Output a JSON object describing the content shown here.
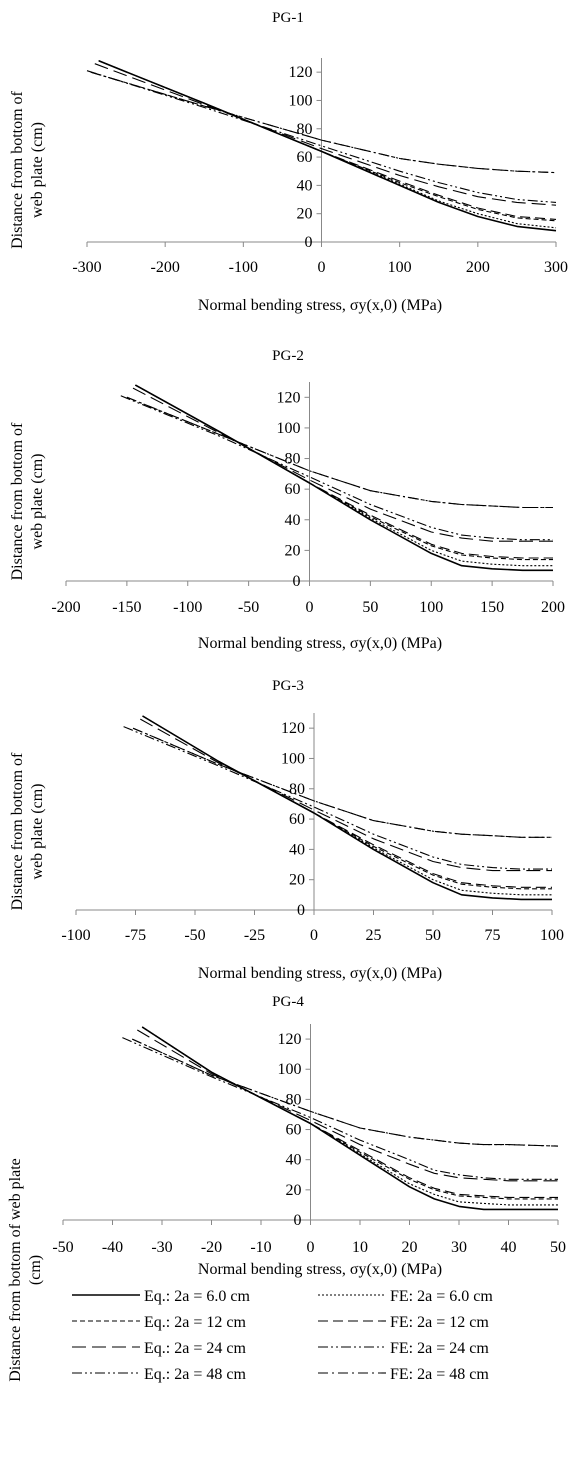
{
  "y_label": "Distance from bottom of web plate (cm)",
  "y_label_lines_a": [
    "Distance from bottom of",
    "web plate (cm)"
  ],
  "y_label_lines_b": [
    "Distance from bottom of web plate",
    "(cm)"
  ],
  "legend": [
    {
      "label": "Eq.: 2a = 6.0 cm",
      "dash": "solid"
    },
    {
      "label": "FE: 2a = 6.0 cm",
      "dash": "dotted"
    },
    {
      "label": "Eq.: 2a = 12 cm",
      "dash": "short-dash"
    },
    {
      "label": "FE: 2a = 12 cm",
      "dash": "dash"
    },
    {
      "label": "Eq.: 2a = 24 cm",
      "dash": "long-dash"
    },
    {
      "label": "FE: 2a = 24 cm",
      "dash": "dash-dot-dot"
    },
    {
      "label": "Eq.: 2a = 48 cm",
      "dash": "dash-dot-dot"
    },
    {
      "label": "FE: 2a = 48 cm",
      "dash": "dash-dot"
    }
  ],
  "chart_data": [
    {
      "type": "line",
      "title": "PG-1",
      "xlabel": "Normal bending stress,  σy(x,0) (MPa)",
      "ylabel": "Distance from bottom of web plate (cm)",
      "xlim": [
        -300,
        300
      ],
      "ylim": [
        0,
        130
      ],
      "xticks": [
        -300,
        -200,
        -100,
        0,
        100,
        200,
        300
      ],
      "yticks": [
        0,
        20,
        40,
        60,
        80,
        100,
        120
      ],
      "grid": false,
      "series": [
        {
          "name": "Eq.: 2a = 6.0 cm",
          "x": [
            -285,
            -150,
            0,
            100,
            150,
            200,
            250,
            300
          ],
          "y": [
            128,
            98,
            64,
            40,
            28,
            18,
            11,
            8
          ]
        },
        {
          "name": "FE: 2a = 6.0 cm",
          "x": [
            -285,
            -150,
            0,
            100,
            150,
            200,
            250,
            300
          ],
          "y": [
            128,
            98,
            64,
            41,
            29,
            20,
            13,
            10
          ]
        },
        {
          "name": "Eq.: 2a = 12 cm",
          "x": [
            -285,
            -150,
            0,
            100,
            150,
            200,
            250,
            300
          ],
          "y": [
            128,
            98,
            64,
            42,
            32,
            23,
            17,
            15
          ]
        },
        {
          "name": "FE: 2a = 12 cm",
          "x": [
            -285,
            -150,
            0,
            100,
            150,
            200,
            250,
            300
          ],
          "y": [
            128,
            98,
            64,
            43,
            33,
            24,
            18,
            16
          ]
        },
        {
          "name": "Eq.: 2a = 24 cm",
          "x": [
            -290,
            -150,
            0,
            100,
            150,
            200,
            250,
            300
          ],
          "y": [
            126,
            97,
            66,
            47,
            39,
            32,
            28,
            26
          ]
        },
        {
          "name": "FE: 2a = 24 cm",
          "x": [
            -300,
            -150,
            0,
            100,
            150,
            200,
            250,
            300
          ],
          "y": [
            121,
            95,
            68,
            50,
            42,
            35,
            30,
            28
          ]
        },
        {
          "name": "Eq.: 2a = 48 cm",
          "x": [
            -295,
            -150,
            0,
            100,
            150,
            200,
            250,
            300
          ],
          "y": [
            120,
            96,
            72,
            59,
            55,
            52,
            50,
            49
          ]
        },
        {
          "name": "FE: 2a = 48 cm",
          "x": [
            -295,
            -150,
            0,
            100,
            150,
            200,
            250,
            300
          ],
          "y": [
            120,
            96,
            72,
            59,
            55,
            52,
            50,
            49
          ]
        }
      ]
    },
    {
      "type": "line",
      "title": "PG-2",
      "xlabel": "Normal bending stress,  σy(x,0) (MPa)",
      "ylabel": "Distance from bottom of web plate (cm)",
      "xlim": [
        -200,
        200
      ],
      "ylim": [
        0,
        130
      ],
      "xticks": [
        -200,
        -150,
        -100,
        -50,
        0,
        50,
        100,
        150,
        200
      ],
      "yticks": [
        0,
        20,
        40,
        60,
        80,
        100,
        120
      ],
      "grid": false,
      "series": [
        {
          "name": "Eq.: 2a = 6.0 cm",
          "x": [
            -143,
            -75,
            0,
            50,
            100,
            125,
            150,
            175,
            200
          ],
          "y": [
            128,
            98,
            64,
            40,
            18,
            10,
            8,
            7,
            7
          ]
        },
        {
          "name": "FE: 2a = 6.0 cm",
          "x": [
            -143,
            -75,
            0,
            50,
            100,
            125,
            150,
            175,
            200
          ],
          "y": [
            128,
            98,
            64,
            41,
            20,
            13,
            11,
            10,
            10
          ]
        },
        {
          "name": "Eq.: 2a = 12 cm",
          "x": [
            -143,
            -75,
            0,
            50,
            100,
            125,
            150,
            175,
            200
          ],
          "y": [
            128,
            98,
            64,
            42,
            23,
            17,
            15,
            14,
            14
          ]
        },
        {
          "name": "FE: 2a = 12 cm",
          "x": [
            -143,
            -75,
            0,
            50,
            100,
            125,
            150,
            175,
            200
          ],
          "y": [
            128,
            98,
            64,
            43,
            24,
            18,
            16,
            15,
            15
          ]
        },
        {
          "name": "Eq.: 2a = 24 cm",
          "x": [
            -145,
            -75,
            0,
            50,
            100,
            125,
            150,
            175,
            200
          ],
          "y": [
            126,
            97,
            66,
            47,
            32,
            28,
            26,
            26,
            26
          ]
        },
        {
          "name": "FE: 2a = 24 cm",
          "x": [
            -155,
            -75,
            0,
            50,
            100,
            125,
            150,
            175,
            200
          ],
          "y": [
            121,
            95,
            68,
            50,
            35,
            30,
            28,
            27,
            27
          ]
        },
        {
          "name": "Eq.: 2a = 48 cm",
          "x": [
            -150,
            -75,
            0,
            50,
            100,
            125,
            150,
            175,
            200
          ],
          "y": [
            120,
            96,
            72,
            59,
            52,
            50,
            49,
            48,
            48
          ]
        },
        {
          "name": "FE: 2a = 48 cm",
          "x": [
            -150,
            -75,
            0,
            50,
            100,
            125,
            150,
            175,
            200
          ],
          "y": [
            120,
            96,
            72,
            59,
            52,
            50,
            49,
            48,
            48
          ]
        }
      ]
    },
    {
      "type": "line",
      "title": "PG-3",
      "xlabel": "Normal bending stress,  σy(x,0) (MPa)",
      "ylabel": "Distance from bottom of web plate (cm)",
      "xlim": [
        -100,
        100
      ],
      "ylim": [
        0,
        130
      ],
      "xticks": [
        -100,
        -75,
        -50,
        -25,
        0,
        25,
        50,
        75,
        100
      ],
      "yticks": [
        0,
        20,
        40,
        60,
        80,
        100,
        120
      ],
      "grid": false,
      "series": [
        {
          "name": "Eq.: 2a = 6.0 cm",
          "x": [
            -72,
            -40,
            0,
            25,
            50,
            62,
            75,
            87,
            100
          ],
          "y": [
            128,
            98,
            64,
            40,
            18,
            10,
            8,
            7,
            7
          ]
        },
        {
          "name": "FE: 2a = 6.0 cm",
          "x": [
            -72,
            -40,
            0,
            25,
            50,
            62,
            75,
            87,
            100
          ],
          "y": [
            128,
            98,
            64,
            41,
            20,
            13,
            11,
            10,
            10
          ]
        },
        {
          "name": "Eq.: 2a = 12 cm",
          "x": [
            -72,
            -40,
            0,
            25,
            50,
            62,
            75,
            87,
            100
          ],
          "y": [
            128,
            98,
            64,
            42,
            23,
            17,
            15,
            14,
            14
          ]
        },
        {
          "name": "FE: 2a = 12 cm",
          "x": [
            -72,
            -40,
            0,
            25,
            50,
            62,
            75,
            87,
            100
          ],
          "y": [
            128,
            98,
            64,
            43,
            24,
            18,
            16,
            15,
            15
          ]
        },
        {
          "name": "Eq.: 2a = 24 cm",
          "x": [
            -73,
            -40,
            0,
            25,
            50,
            62,
            75,
            87,
            100
          ],
          "y": [
            126,
            97,
            66,
            47,
            32,
            28,
            26,
            26,
            26
          ]
        },
        {
          "name": "FE: 2a = 24 cm",
          "x": [
            -80,
            -40,
            0,
            25,
            50,
            62,
            75,
            87,
            100
          ],
          "y": [
            121,
            95,
            68,
            50,
            35,
            30,
            28,
            27,
            27
          ]
        },
        {
          "name": "Eq.: 2a = 48 cm",
          "x": [
            -76,
            -40,
            0,
            25,
            50,
            62,
            75,
            87,
            100
          ],
          "y": [
            120,
            96,
            72,
            59,
            52,
            50,
            49,
            48,
            48
          ]
        },
        {
          "name": "FE: 2a = 48 cm",
          "x": [
            -76,
            -40,
            0,
            25,
            50,
            62,
            75,
            87,
            100
          ],
          "y": [
            120,
            96,
            72,
            59,
            52,
            50,
            49,
            48,
            48
          ]
        }
      ]
    },
    {
      "type": "line",
      "title": "PG-4",
      "xlabel": "Normal bending stress,  σy(x,0) (MPa)",
      "ylabel": "Distance from bottom of web plate (cm)",
      "xlim": [
        -50,
        50
      ],
      "ylim": [
        0,
        130
      ],
      "xticks": [
        -50,
        -40,
        -30,
        -20,
        -10,
        0,
        10,
        20,
        30,
        40,
        50
      ],
      "yticks": [
        0,
        20,
        40,
        60,
        80,
        100,
        120
      ],
      "grid": false,
      "series": [
        {
          "name": "Eq.: 2a = 6.0 cm",
          "x": [
            -34,
            -20,
            0,
            10,
            20,
            25,
            30,
            35,
            40,
            50
          ],
          "y": [
            128,
            98,
            64,
            43,
            22,
            14,
            9,
            7,
            7,
            7
          ]
        },
        {
          "name": "FE: 2a = 6.0 cm",
          "x": [
            -34,
            -20,
            0,
            10,
            20,
            25,
            30,
            35,
            40,
            50
          ],
          "y": [
            128,
            98,
            64,
            44,
            24,
            17,
            12,
            11,
            10,
            10
          ]
        },
        {
          "name": "Eq.: 2a = 12 cm",
          "x": [
            -34,
            -20,
            0,
            10,
            20,
            25,
            30,
            35,
            40,
            50
          ],
          "y": [
            128,
            98,
            64,
            45,
            27,
            20,
            16,
            15,
            14,
            14
          ]
        },
        {
          "name": "FE: 2a = 12 cm",
          "x": [
            -34,
            -20,
            0,
            10,
            20,
            25,
            30,
            35,
            40,
            50
          ],
          "y": [
            128,
            98,
            64,
            46,
            28,
            21,
            17,
            16,
            15,
            15
          ]
        },
        {
          "name": "Eq.: 2a = 24 cm",
          "x": [
            -35,
            -20,
            0,
            10,
            20,
            25,
            30,
            35,
            40,
            50
          ],
          "y": [
            126,
            97,
            66,
            50,
            37,
            31,
            28,
            27,
            26,
            26
          ]
        },
        {
          "name": "FE: 2a = 24 cm",
          "x": [
            -38,
            -20,
            0,
            10,
            20,
            25,
            30,
            35,
            40,
            50
          ],
          "y": [
            121,
            95,
            68,
            53,
            40,
            33,
            30,
            28,
            27,
            27
          ]
        },
        {
          "name": "Eq.: 2a = 48 cm",
          "x": [
            -36,
            -20,
            0,
            10,
            20,
            25,
            30,
            35,
            40,
            50
          ],
          "y": [
            120,
            96,
            72,
            61,
            55,
            53,
            51,
            50,
            50,
            49
          ]
        },
        {
          "name": "FE: 2a = 48 cm",
          "x": [
            -36,
            -20,
            0,
            10,
            20,
            25,
            30,
            35,
            40,
            50
          ],
          "y": [
            120,
            96,
            72,
            61,
            55,
            53,
            51,
            50,
            50,
            49
          ]
        }
      ]
    }
  ]
}
